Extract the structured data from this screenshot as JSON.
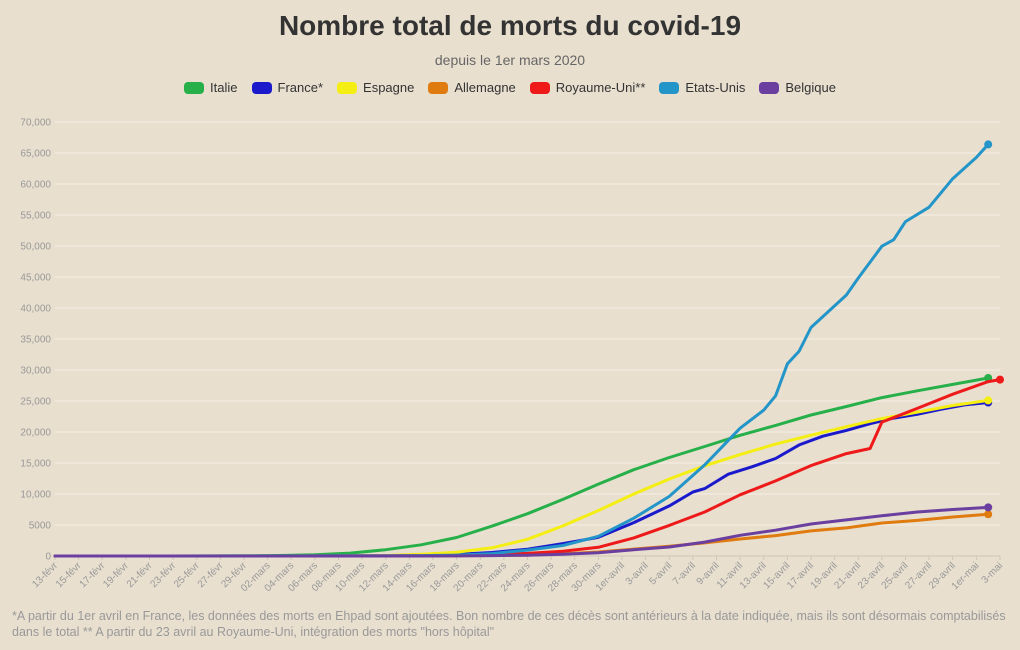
{
  "title": "Nombre total de morts du covid-19",
  "subtitle": "depuis le 1er mars 2020",
  "footnote": "*A partir du 1er avril en France, les données des morts en Ehpad sont ajoutées. Bon nombre de ces décès sont antérieurs à la date indiquée, mais ils sont désormais comptabilisés dans le total ** A partir du 23 avril au Royaume-Uni, intégration des morts \"hors hôpital\"",
  "chart_data": {
    "type": "line",
    "title": "Nombre total de morts du covid-19",
    "subtitle": "depuis le 1er mars 2020",
    "xlabel": "",
    "ylabel": "",
    "ylim": [
      0,
      70000
    ],
    "yticks": [
      "0",
      "5000",
      "10,000",
      "15,000",
      "20,000",
      "25,000",
      "30,000",
      "35,000",
      "40,000",
      "45,000",
      "50,000",
      "55,000",
      "60,000",
      "65,000",
      "70,000"
    ],
    "ytick_values": [
      0,
      5000,
      10000,
      15000,
      20000,
      25000,
      30000,
      35000,
      40000,
      45000,
      50000,
      55000,
      60000,
      65000,
      70000
    ],
    "x_dates": [
      "13-févr",
      "14-févr",
      "15-févr",
      "16-févr",
      "17-févr",
      "18-févr",
      "19-févr",
      "20-févr",
      "21-févr",
      "22-févr",
      "23-févr",
      "24-févr",
      "25-févr",
      "26-févr",
      "27-févr",
      "28-févr",
      "29-févr",
      "01-mars",
      "02-mars",
      "03-mars",
      "04-mars",
      "05-mars",
      "06-mars",
      "07-mars",
      "08-mars",
      "09-mars",
      "10-mars",
      "11-mars",
      "12-mars",
      "13-mars",
      "14-mars",
      "15-mars",
      "16-mars",
      "17-mars",
      "18-mars",
      "19-mars",
      "20-mars",
      "21-mars",
      "22-mars",
      "23-mars",
      "24-mars",
      "25-mars",
      "26-mars",
      "27-mars",
      "28-mars",
      "29-mars",
      "30-mars",
      "31-mars",
      "1er-avril",
      "2-avril",
      "3-avril",
      "4-avril",
      "5-avril",
      "6-avril",
      "7-avril",
      "8-avril",
      "9-avril",
      "10-avril",
      "11-avril",
      "12-avril",
      "13-avril",
      "14-avril",
      "15-avril",
      "16-avril",
      "17-avril",
      "18-avril",
      "19-avril",
      "20-avril",
      "21-avril",
      "22-avril",
      "23-avril",
      "24-avril",
      "25-avril",
      "26-avril",
      "27-avril",
      "28-avril",
      "29-avril",
      "30-avril",
      "1er-mai",
      "2-mai",
      "3-mai"
    ],
    "xtick_labels": [
      "13-févr",
      "15-févr",
      "17-févr",
      "19-févr",
      "21-févr",
      "23-févr",
      "25-févr",
      "27-févr",
      "29-févr",
      "02-mars",
      "04-mars",
      "06-mars",
      "08-mars",
      "10-mars",
      "12-mars",
      "14-mars",
      "16-mars",
      "18-mars",
      "20-mars",
      "22-mars",
      "24-mars",
      "26-mars",
      "28-mars",
      "30-mars",
      "1er-avril",
      "3-avril",
      "5-avril",
      "7-avril",
      "9-avril",
      "11-avril",
      "13-avril",
      "15-avril",
      "17-avril",
      "19-avril",
      "21-avril",
      "23-avril",
      "25-avril",
      "27-avril",
      "29-avril",
      "1er-mai",
      "3-mai"
    ],
    "legend_position": "top-center",
    "grid": true,
    "series": [
      {
        "name": "Italie",
        "color": "#27b04a",
        "last_marker": true,
        "points": [
          [
            "13-févr",
            0
          ],
          [
            "19-févr",
            0
          ],
          [
            "23-févr",
            2
          ],
          [
            "29-févr",
            29
          ],
          [
            "03-mars",
            79
          ],
          [
            "06-mars",
            197
          ],
          [
            "09-mars",
            463
          ],
          [
            "12-mars",
            1016
          ],
          [
            "15-mars",
            1809
          ],
          [
            "18-mars",
            2978
          ],
          [
            "21-mars",
            4825
          ],
          [
            "24-mars",
            6820
          ],
          [
            "27-mars",
            9134
          ],
          [
            "30-mars",
            11591
          ],
          [
            "02-avril",
            13915
          ],
          [
            "05-avril",
            15887
          ],
          [
            "08-avril",
            17669
          ],
          [
            "11-avril",
            19468
          ],
          [
            "14-avril",
            21067
          ],
          [
            "17-avril",
            22745
          ],
          [
            "20-avril",
            24114
          ],
          [
            "23-avril",
            25549
          ],
          [
            "26-avril",
            26644
          ],
          [
            "29-avril",
            27682
          ],
          [
            "02-mai",
            28710
          ]
        ]
      },
      {
        "name": "France*",
        "color": "#1a1acc",
        "last_marker": true,
        "points": [
          [
            "13-févr",
            0
          ],
          [
            "29-févr",
            2
          ],
          [
            "05-mars",
            6
          ],
          [
            "10-mars",
            33
          ],
          [
            "15-mars",
            127
          ],
          [
            "18-mars",
            264
          ],
          [
            "21-mars",
            562
          ],
          [
            "24-mars",
            1100
          ],
          [
            "27-mars",
            1995
          ],
          [
            "30-mars",
            3024
          ],
          [
            "02-avril",
            5387
          ],
          [
            "05-avril",
            8078
          ],
          [
            "07-avril",
            10328
          ],
          [
            "08-avril",
            10869
          ],
          [
            "10-avril",
            13197
          ],
          [
            "12-avril",
            14393
          ],
          [
            "14-avril",
            15729
          ],
          [
            "16-avril",
            17920
          ],
          [
            "18-avril",
            19323
          ],
          [
            "20-avril",
            20265
          ],
          [
            "22-avril",
            21340
          ],
          [
            "24-avril",
            22245
          ],
          [
            "26-avril",
            22856
          ],
          [
            "28-avril",
            23660
          ],
          [
            "30-avril",
            24376
          ],
          [
            "02-mai",
            24760
          ]
        ]
      },
      {
        "name": "Espagne",
        "color": "#f5ee12",
        "last_marker": true,
        "points": [
          [
            "13-févr",
            0
          ],
          [
            "03-mars",
            0
          ],
          [
            "08-mars",
            10
          ],
          [
            "12-mars",
            84
          ],
          [
            "15-mars",
            288
          ],
          [
            "18-mars",
            598
          ],
          [
            "21-mars",
            1326
          ],
          [
            "24-mars",
            2696
          ],
          [
            "27-mars",
            4858
          ],
          [
            "30-mars",
            7340
          ],
          [
            "02-avril",
            10003
          ],
          [
            "05-avril",
            12418
          ],
          [
            "08-avril",
            14555
          ],
          [
            "11-avril",
            16353
          ],
          [
            "14-avril",
            18056
          ],
          [
            "17-avril",
            19478
          ],
          [
            "20-avril",
            20852
          ],
          [
            "23-avril",
            22157
          ],
          [
            "26-avril",
            23190
          ],
          [
            "29-avril",
            24275
          ],
          [
            "02-mai",
            25100
          ]
        ]
      },
      {
        "name": "Allemagne",
        "color": "#e07b10",
        "last_marker": true,
        "points": [
          [
            "13-févr",
            0
          ],
          [
            "08-mars",
            0
          ],
          [
            "12-mars",
            6
          ],
          [
            "15-mars",
            12
          ],
          [
            "18-mars",
            28
          ],
          [
            "21-mars",
            84
          ],
          [
            "24-mars",
            149
          ],
          [
            "27-mars",
            342
          ],
          [
            "30-mars",
            645
          ],
          [
            "02-avril",
            1107
          ],
          [
            "05-avril",
            1584
          ],
          [
            "08-avril",
            2107
          ],
          [
            "11-avril",
            2736
          ],
          [
            "14-avril",
            3294
          ],
          [
            "17-avril",
            4052
          ],
          [
            "20-avril",
            4538
          ],
          [
            "23-avril",
            5321
          ],
          [
            "26-avril",
            5750
          ],
          [
            "29-avril",
            6288
          ],
          [
            "02-mai",
            6736
          ]
        ]
      },
      {
        "name": "Royaume-Uni**",
        "color": "#ee1a1a",
        "last_marker": true,
        "points": [
          [
            "13-févr",
            0
          ],
          [
            "04-mars",
            0
          ],
          [
            "08-mars",
            3
          ],
          [
            "12-mars",
            10
          ],
          [
            "15-mars",
            35
          ],
          [
            "18-mars",
            103
          ],
          [
            "21-mars",
            233
          ],
          [
            "24-mars",
            422
          ],
          [
            "27-mars",
            759
          ],
          [
            "30-mars",
            1408
          ],
          [
            "02-avril",
            2921
          ],
          [
            "05-avril",
            4934
          ],
          [
            "08-avril",
            7097
          ],
          [
            "11-avril",
            9875
          ],
          [
            "14-avril",
            12107
          ],
          [
            "17-avril",
            14576
          ],
          [
            "20-avril",
            16509
          ],
          [
            "22-avril",
            17337
          ],
          [
            "23-avril",
            21600
          ],
          [
            "26-avril",
            23800
          ],
          [
            "29-avril",
            26097
          ],
          [
            "02-mai",
            28131
          ],
          [
            "03-mai",
            28446
          ]
        ]
      },
      {
        "name": "Etats-Unis",
        "color": "#2495c8",
        "last_marker": true,
        "points": [
          [
            "13-févr",
            0
          ],
          [
            "29-févr",
            1
          ],
          [
            "05-mars",
            11
          ],
          [
            "10-mars",
            28
          ],
          [
            "15-mars",
            68
          ],
          [
            "18-mars",
            150
          ],
          [
            "21-mars",
            390
          ],
          [
            "24-mars",
            946
          ],
          [
            "27-mars",
            1695
          ],
          [
            "30-mars",
            3170
          ],
          [
            "02-avril",
            6095
          ],
          [
            "05-avril",
            9620
          ],
          [
            "08-avril",
            14695
          ],
          [
            "11-avril",
            20608
          ],
          [
            "13-avril",
            23529
          ],
          [
            "14-avril",
            25831
          ],
          [
            "15-avril",
            31002
          ],
          [
            "16-avril",
            33053
          ],
          [
            "17-avril",
            36855
          ],
          [
            "20-avril",
            42094
          ],
          [
            "21-avril",
            44845
          ],
          [
            "23-avril",
            49963
          ],
          [
            "24-avril",
            51017
          ],
          [
            "25-avril",
            53934
          ],
          [
            "27-avril",
            56253
          ],
          [
            "29-avril",
            60876
          ],
          [
            "01-mai",
            64283
          ],
          [
            "02-mai",
            66385
          ]
        ]
      },
      {
        "name": "Belgique",
        "color": "#6b3fa0",
        "last_marker": true,
        "points": [
          [
            "13-févr",
            0
          ],
          [
            "10-mars",
            0
          ],
          [
            "15-mars",
            4
          ],
          [
            "18-mars",
            14
          ],
          [
            "21-mars",
            67
          ],
          [
            "24-mars",
            122
          ],
          [
            "27-mars",
            289
          ],
          [
            "30-mars",
            513
          ],
          [
            "02-avril",
            1011
          ],
          [
            "05-avril",
            1447
          ],
          [
            "08-avril",
            2240
          ],
          [
            "11-avril",
            3346
          ],
          [
            "14-avril",
            4157
          ],
          [
            "17-avril",
            5163
          ],
          [
            "20-avril",
            5828
          ],
          [
            "23-avril",
            6490
          ],
          [
            "26-avril",
            7094
          ],
          [
            "29-avril",
            7501
          ],
          [
            "02-mai",
            7844
          ]
        ]
      }
    ]
  }
}
